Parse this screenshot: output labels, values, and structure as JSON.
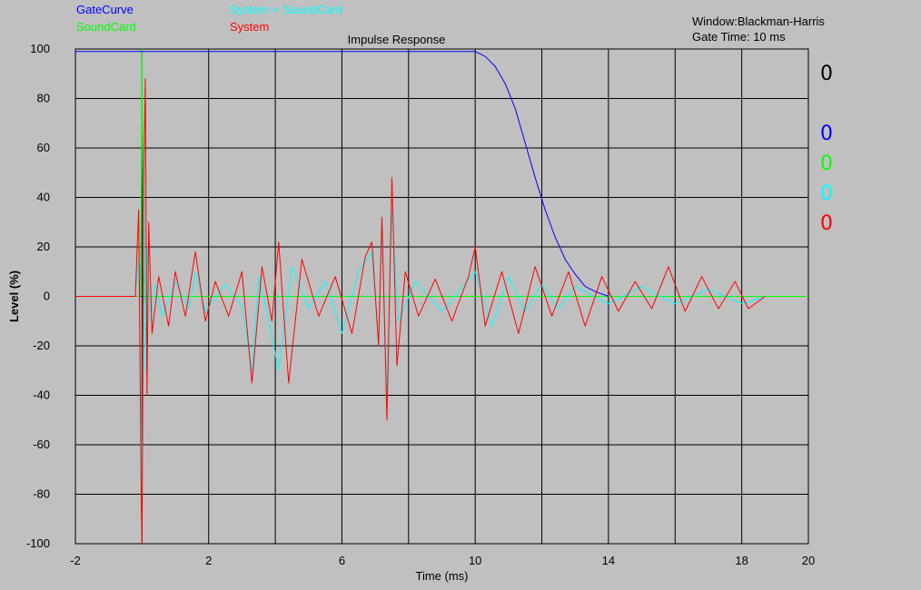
{
  "chart_data": {
    "type": "line",
    "title": "Impulse Response",
    "xlabel": "Time (ms)",
    "ylabel": "Level (%)",
    "xlim": [
      -2,
      20
    ],
    "ylim": [
      -100,
      100
    ],
    "xticks": [
      -2,
      2,
      6,
      10,
      14,
      18,
      20
    ],
    "xgrid": [
      -2,
      0,
      2,
      4,
      6,
      8,
      10,
      12,
      14,
      16,
      18,
      20
    ],
    "yticks": [
      -100,
      -80,
      -60,
      -40,
      -20,
      0,
      20,
      40,
      60,
      80,
      100
    ],
    "grid": true,
    "legend_position": "top-left",
    "series": [
      {
        "name": "GateCurve",
        "color": "#0000ff",
        "x": [
          -2,
          10,
          10.3,
          10.6,
          10.9,
          11.2,
          11.5,
          11.8,
          12.1,
          12.4,
          12.7,
          13.0,
          13.3,
          13.6,
          13.8,
          14.0
        ],
        "y": [
          99,
          99,
          97,
          93,
          86,
          76,
          62,
          48,
          35,
          24,
          15,
          9,
          4,
          2,
          1,
          0
        ]
      },
      {
        "name": "SoundCard",
        "color": "#00ff00",
        "x": [
          -2,
          -0.05,
          -0.02,
          0.0,
          0.02,
          0.05,
          0.08,
          0.12,
          20
        ],
        "y": [
          0,
          0,
          40,
          100,
          60,
          10,
          -3,
          0,
          0
        ]
      },
      {
        "name": "System + SoundCard",
        "color": "#00ffff",
        "x": [
          -2,
          -0.2,
          -0.1,
          0.0,
          0.05,
          0.1,
          0.15,
          0.25,
          0.4,
          0.6,
          1.0,
          1.4,
          1.6,
          1.9,
          2.5,
          3.0,
          3.3,
          3.5,
          3.8,
          4.1,
          4.5,
          5.0,
          5.5,
          6.0,
          6.5,
          6.9,
          7.1,
          7.2,
          7.35,
          7.5,
          7.7,
          8.2,
          9.0,
          10.0,
          10.5,
          11.0,
          11.5,
          12.0,
          12.5,
          13.0,
          14.0,
          15.0,
          16.0,
          17.0,
          18.0,
          18.7
        ],
        "y": [
          0,
          0,
          15,
          -80,
          60,
          -30,
          20,
          -10,
          5,
          -8,
          6,
          -5,
          10,
          -6,
          5,
          -4,
          -30,
          8,
          -10,
          -30,
          12,
          -5,
          6,
          -15,
          10,
          18,
          -20,
          30,
          -40,
          35,
          -10,
          6,
          -6,
          10,
          -12,
          8,
          -6,
          5,
          -5,
          4,
          -3,
          4,
          -3,
          3,
          -3,
          0
        ]
      },
      {
        "name": "System",
        "color": "#ff0000",
        "x": [
          -2,
          -0.2,
          -0.1,
          -0.02,
          0.0,
          0.05,
          0.1,
          0.15,
          0.2,
          0.3,
          0.5,
          0.8,
          1.0,
          1.3,
          1.6,
          1.9,
          2.2,
          2.6,
          3.0,
          3.3,
          3.6,
          3.9,
          4.1,
          4.4,
          4.8,
          5.3,
          5.8,
          6.3,
          6.7,
          6.9,
          7.1,
          7.2,
          7.35,
          7.5,
          7.65,
          7.9,
          8.3,
          8.8,
          9.3,
          9.8,
          10.0,
          10.3,
          10.8,
          11.3,
          11.8,
          12.3,
          12.8,
          13.3,
          13.8,
          14.3,
          14.8,
          15.3,
          15.8,
          16.3,
          16.8,
          17.3,
          17.8,
          18.2,
          18.7
        ],
        "y": [
          0,
          0,
          35,
          -85,
          -100,
          45,
          88,
          -40,
          30,
          -15,
          8,
          -12,
          10,
          -8,
          18,
          -10,
          6,
          -8,
          10,
          -35,
          12,
          -10,
          22,
          -35,
          15,
          -8,
          8,
          -15,
          16,
          22,
          -20,
          32,
          -50,
          48,
          -28,
          10,
          -8,
          7,
          -10,
          8,
          20,
          -12,
          10,
          -15,
          12,
          -8,
          10,
          -12,
          8,
          -6,
          6,
          -5,
          12,
          -6,
          8,
          -5,
          6,
          -5,
          0
        ]
      }
    ]
  },
  "legend": {
    "gatecurve": "GateCurve",
    "soundcard": "SoundCard",
    "system_soundcard": "System + SoundCard",
    "system": "System"
  },
  "info": {
    "window": "Window:Blackman-Harris",
    "gate_time": "Gate Time:  10 ms"
  },
  "readouts": [
    "0",
    "0",
    "0",
    "0",
    "0"
  ],
  "readout_colors": [
    "#000000",
    "#0000ff",
    "#00ff00",
    "#00ffff",
    "#ff0000"
  ]
}
